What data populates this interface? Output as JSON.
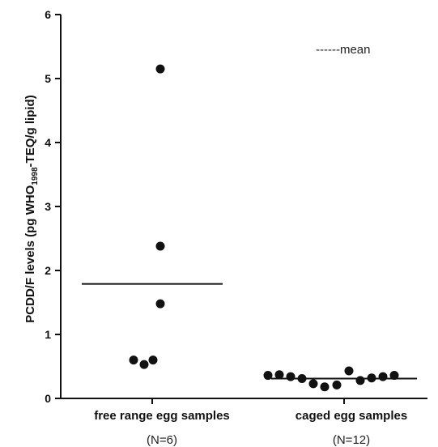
{
  "chart_data": {
    "type": "scatter",
    "ylabel": {
      "prefix": "PCDD/F levels (pg WHO",
      "subscript": "1998",
      "suffix": "-TEQ/g lipid)"
    },
    "ylim": [
      0,
      6
    ],
    "yticks": [
      "0",
      "1",
      "2",
      "3",
      "4",
      "5",
      "6"
    ],
    "legend": {
      "label": "------mean",
      "placement": "top-right"
    },
    "categories": [
      {
        "label": "free range egg samples",
        "sublabel": "(N=6)",
        "mean": 1.79,
        "values": [
          5.15,
          2.38,
          1.48,
          0.6,
          0.53,
          0.6
        ]
      },
      {
        "label": "caged egg samples",
        "sublabel": "(N=12)",
        "mean": 0.31,
        "values": [
          0.36,
          0.37,
          0.34,
          0.31,
          0.23,
          0.18,
          0.43,
          0.21,
          0.28,
          0.32,
          0.34,
          0.36
        ]
      }
    ],
    "colors": {
      "points": "#111111",
      "axis": "#111111",
      "mean_line": "#111111"
    }
  }
}
